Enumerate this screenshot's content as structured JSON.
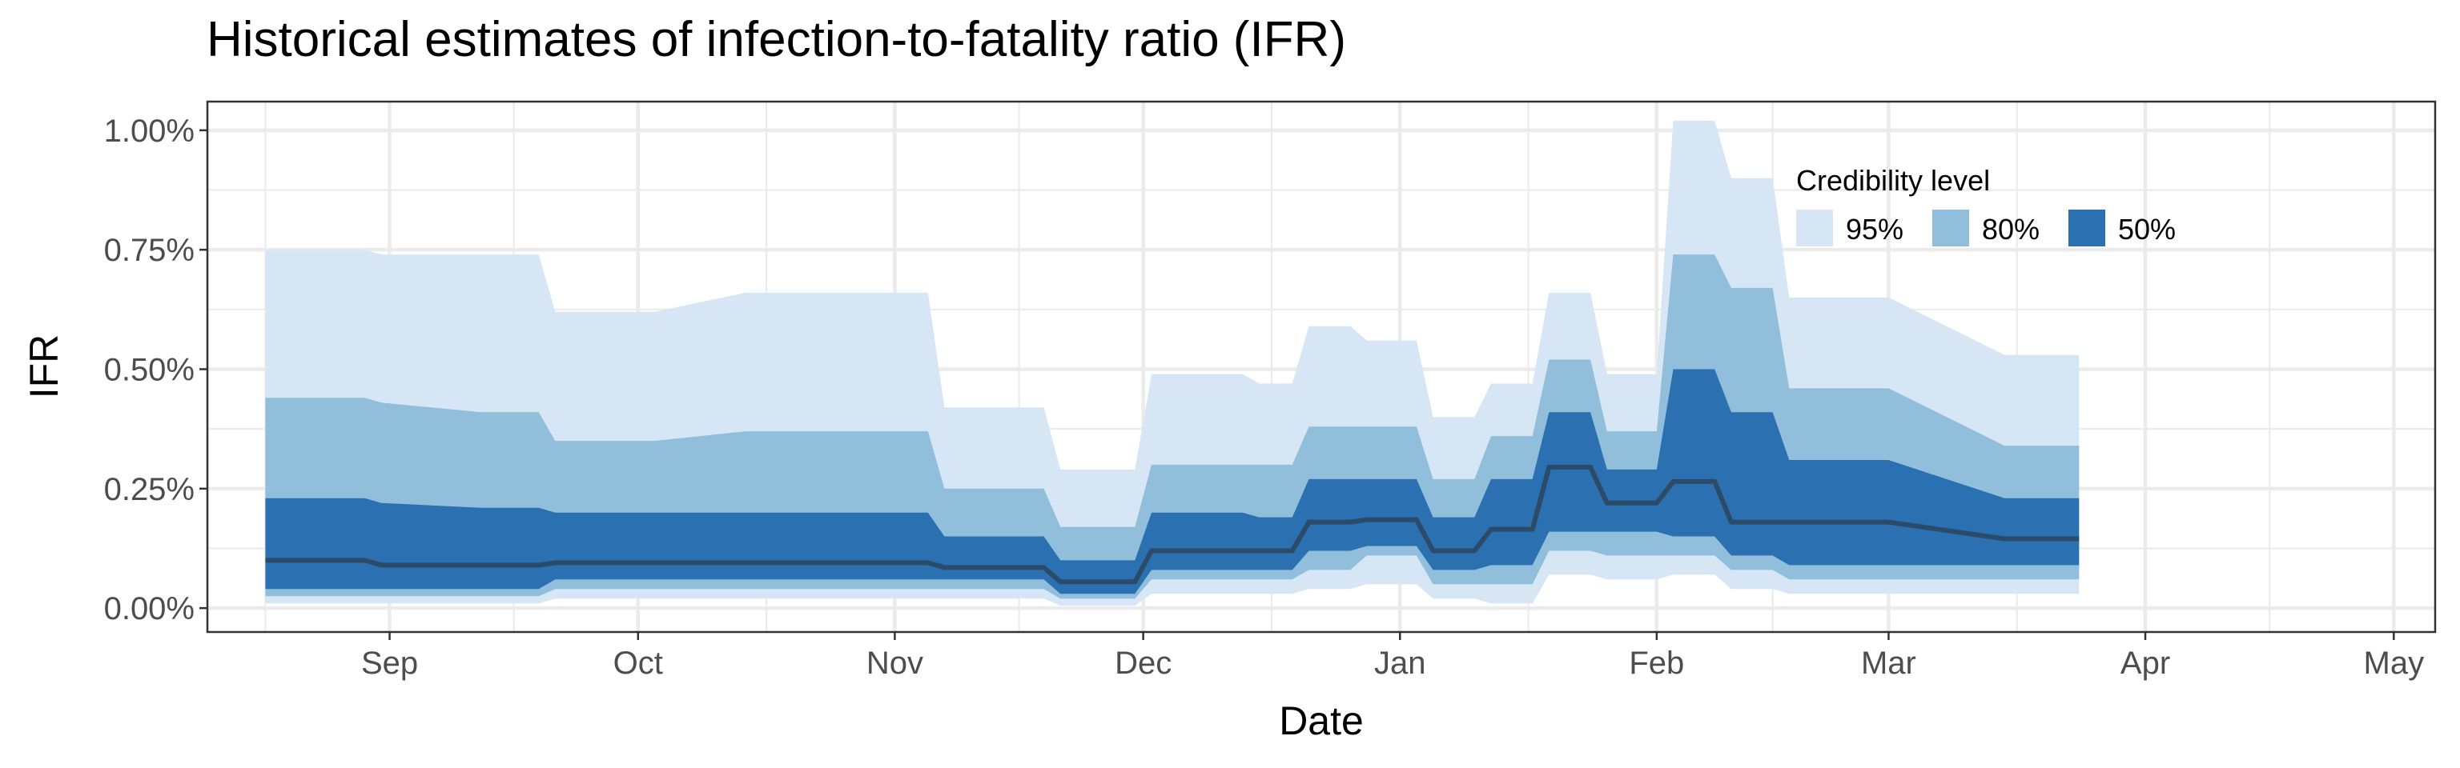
{
  "chart_data": {
    "type": "area",
    "title": "Historical estimates of infection-to-fatality ratio (IFR)",
    "xlabel": "Date",
    "ylabel": "IFR",
    "x_axis": {
      "type": "date",
      "range": [
        "2020-08-10",
        "2021-05-06"
      ],
      "ticks": [
        {
          "date": "2020-09-01",
          "label": "Sep"
        },
        {
          "date": "2020-10-01",
          "label": "Oct"
        },
        {
          "date": "2020-11-01",
          "label": "Nov"
        },
        {
          "date": "2020-12-01",
          "label": "Dec"
        },
        {
          "date": "2021-01-01",
          "label": "Jan"
        },
        {
          "date": "2021-02-01",
          "label": "Feb"
        },
        {
          "date": "2021-03-01",
          "label": "Mar"
        },
        {
          "date": "2021-04-01",
          "label": "Apr"
        },
        {
          "date": "2021-05-01",
          "label": "May"
        }
      ]
    },
    "y_axis": {
      "range": [
        -0.0005,
        0.0106
      ],
      "ticks": [
        {
          "value": 0.0,
          "label": "0.00%"
        },
        {
          "value": 0.0025,
          "label": "0.25%"
        },
        {
          "value": 0.005,
          "label": "0.50%"
        },
        {
          "value": 0.0075,
          "label": "0.75%"
        },
        {
          "value": 0.01,
          "label": "1.00%"
        }
      ]
    },
    "grid": true,
    "legend": {
      "title": "Credibility level",
      "placement": "top-right",
      "items": [
        {
          "label": "95%",
          "color": "#d6e6f5"
        },
        {
          "label": "80%",
          "color": "#90bedb"
        },
        {
          "label": "50%",
          "color": "#2b70b1"
        }
      ]
    },
    "line_color": "#2c4b69",
    "dates": [
      "2020-08-17",
      "2020-08-29",
      "2020-08-31",
      "2020-09-12",
      "2020-09-14",
      "2020-09-19",
      "2020-09-21",
      "2020-10-01",
      "2020-10-03",
      "2020-10-14",
      "2020-10-24",
      "2020-10-26",
      "2020-11-05",
      "2020-11-07",
      "2020-11-19",
      "2020-11-21",
      "2020-11-30",
      "2020-12-02",
      "2020-12-13",
      "2020-12-15",
      "2020-12-19",
      "2020-12-21",
      "2020-12-26",
      "2020-12-28",
      "2021-01-03",
      "2021-01-05",
      "2021-01-10",
      "2021-01-12",
      "2021-01-17",
      "2021-01-19",
      "2021-01-24",
      "2021-01-26",
      "2021-02-01",
      "2021-02-03",
      "2021-02-08",
      "2021-02-10",
      "2021-02-15",
      "2021-02-17",
      "2021-03-01",
      "2021-03-15",
      "2021-03-24"
    ],
    "series": [
      {
        "name": "95%",
        "upper": [
          0.0075,
          0.0075,
          0.0074,
          0.0074,
          0.0074,
          0.0074,
          0.0062,
          0.0062,
          0.0062,
          0.0066,
          0.0066,
          0.0066,
          0.0066,
          0.0042,
          0.0042,
          0.0029,
          0.0029,
          0.0049,
          0.0049,
          0.0047,
          0.0047,
          0.0059,
          0.0059,
          0.0056,
          0.0056,
          0.004,
          0.004,
          0.0047,
          0.0047,
          0.0066,
          0.0066,
          0.0049,
          0.0049,
          0.0102,
          0.0102,
          0.009,
          0.009,
          0.0065,
          0.0065,
          0.0053,
          0.0053
        ],
        "lower": [
          0.0001,
          0.0001,
          0.0001,
          0.0001,
          0.0001,
          0.0001,
          0.0002,
          0.0002,
          0.0002,
          0.0002,
          0.0002,
          0.0002,
          0.0002,
          0.0002,
          0.0002,
          5e-05,
          5e-05,
          0.0003,
          0.0003,
          0.0003,
          0.0003,
          0.0004,
          0.0004,
          0.0005,
          0.0005,
          0.0002,
          0.0002,
          0.0001,
          0.0001,
          0.0007,
          0.0007,
          0.0006,
          0.0006,
          0.0007,
          0.0007,
          0.0004,
          0.0004,
          0.0003,
          0.0003,
          0.0003,
          0.0003
        ]
      },
      {
        "name": "80%",
        "upper": [
          0.0044,
          0.0044,
          0.0043,
          0.0041,
          0.0041,
          0.0041,
          0.0035,
          0.0035,
          0.0035,
          0.0037,
          0.0037,
          0.0037,
          0.0037,
          0.0025,
          0.0025,
          0.0017,
          0.0017,
          0.003,
          0.003,
          0.003,
          0.003,
          0.0038,
          0.0038,
          0.0038,
          0.0038,
          0.0027,
          0.0027,
          0.0036,
          0.0036,
          0.0052,
          0.0052,
          0.0037,
          0.0037,
          0.0074,
          0.0074,
          0.0067,
          0.0067,
          0.0046,
          0.0046,
          0.0034,
          0.0034
        ],
        "lower": [
          0.00025,
          0.00025,
          0.00025,
          0.00025,
          0.00025,
          0.00025,
          0.0004,
          0.0004,
          0.0004,
          0.0004,
          0.0004,
          0.0004,
          0.0004,
          0.0004,
          0.0004,
          0.0002,
          0.0002,
          0.0006,
          0.0006,
          0.0006,
          0.0006,
          0.0008,
          0.0008,
          0.0011,
          0.0011,
          0.0005,
          0.0005,
          0.0005,
          0.0005,
          0.0012,
          0.0012,
          0.0011,
          0.0011,
          0.0011,
          0.0011,
          0.0008,
          0.0008,
          0.0006,
          0.0006,
          0.0006,
          0.0006
        ]
      },
      {
        "name": "50%",
        "upper": [
          0.0023,
          0.0023,
          0.0022,
          0.0021,
          0.0021,
          0.0021,
          0.002,
          0.002,
          0.002,
          0.002,
          0.002,
          0.002,
          0.002,
          0.0015,
          0.0015,
          0.001,
          0.001,
          0.002,
          0.002,
          0.0019,
          0.0019,
          0.0027,
          0.0027,
          0.0027,
          0.0027,
          0.0019,
          0.0019,
          0.0027,
          0.0027,
          0.0041,
          0.0041,
          0.0029,
          0.0029,
          0.005,
          0.005,
          0.0041,
          0.0041,
          0.0031,
          0.0031,
          0.0023,
          0.0023
        ],
        "lower": [
          0.0004,
          0.0004,
          0.0004,
          0.0004,
          0.0004,
          0.0004,
          0.0006,
          0.0006,
          0.0006,
          0.0006,
          0.0006,
          0.0006,
          0.0006,
          0.0006,
          0.0006,
          0.0003,
          0.0003,
          0.0008,
          0.0008,
          0.0008,
          0.0008,
          0.0012,
          0.0012,
          0.0013,
          0.0013,
          0.0008,
          0.0008,
          0.0009,
          0.0009,
          0.0016,
          0.0016,
          0.0016,
          0.0016,
          0.0015,
          0.0015,
          0.0011,
          0.0011,
          0.0009,
          0.0009,
          0.0009,
          0.0009
        ]
      }
    ],
    "median": [
      0.001,
      0.001,
      0.0009,
      0.0009,
      0.0009,
      0.0009,
      0.00095,
      0.00095,
      0.00095,
      0.00095,
      0.00095,
      0.00095,
      0.00095,
      0.00085,
      0.00085,
      0.00055,
      0.00055,
      0.0012,
      0.0012,
      0.0012,
      0.0012,
      0.0018,
      0.0018,
      0.00185,
      0.00185,
      0.0012,
      0.0012,
      0.00165,
      0.00165,
      0.00295,
      0.00295,
      0.0022,
      0.0022,
      0.00265,
      0.00265,
      0.0018,
      0.0018,
      0.0018,
      0.0018,
      0.00145,
      0.00145
    ]
  }
}
